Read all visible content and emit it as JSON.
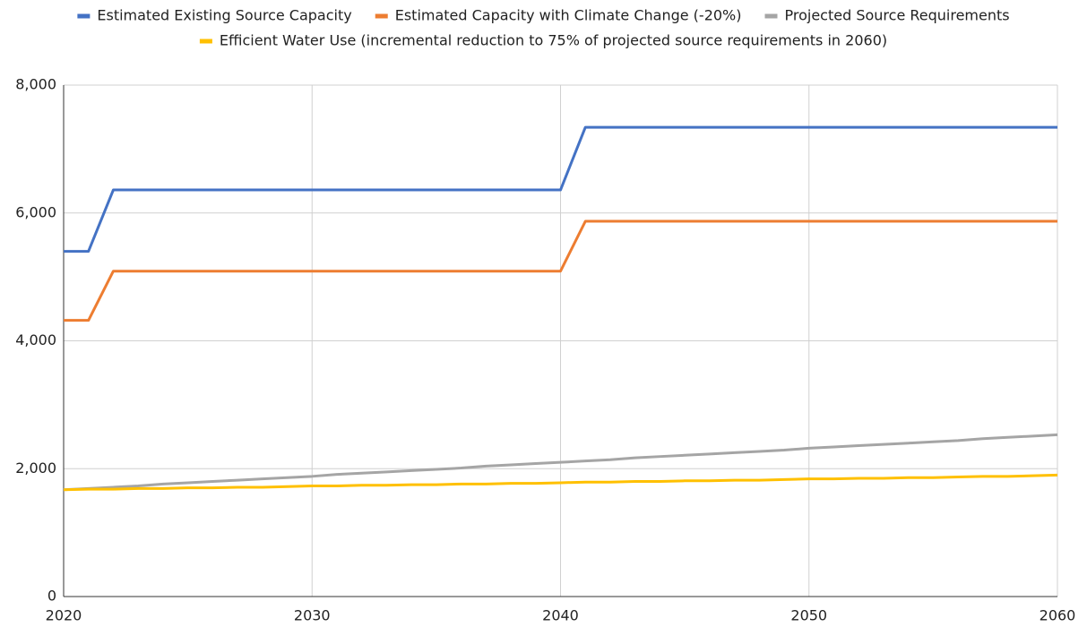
{
  "chart_data": {
    "type": "line",
    "x": [
      2020,
      2021,
      2022,
      2023,
      2024,
      2025,
      2026,
      2027,
      2028,
      2029,
      2030,
      2031,
      2032,
      2033,
      2034,
      2035,
      2036,
      2037,
      2038,
      2039,
      2040,
      2041,
      2042,
      2043,
      2044,
      2045,
      2046,
      2047,
      2048,
      2049,
      2050,
      2051,
      2052,
      2053,
      2054,
      2055,
      2056,
      2057,
      2058,
      2059,
      2060
    ],
    "series": [
      {
        "name": "Estimated Existing Source Capacity",
        "color": "#4472c4",
        "values": [
          5400,
          5400,
          6360,
          6360,
          6360,
          6360,
          6360,
          6360,
          6360,
          6360,
          6360,
          6360,
          6360,
          6360,
          6360,
          6360,
          6360,
          6360,
          6360,
          6360,
          6360,
          7340,
          7340,
          7340,
          7340,
          7340,
          7340,
          7340,
          7340,
          7340,
          7340,
          7340,
          7340,
          7340,
          7340,
          7340,
          7340,
          7340,
          7340,
          7340,
          7340
        ]
      },
      {
        "name": "Estimated Capacity with Climate Change (-20%)",
        "color": "#ed7d31",
        "values": [
          4320,
          4320,
          5090,
          5090,
          5090,
          5090,
          5090,
          5090,
          5090,
          5090,
          5090,
          5090,
          5090,
          5090,
          5090,
          5090,
          5090,
          5090,
          5090,
          5090,
          5090,
          5870,
          5870,
          5870,
          5870,
          5870,
          5870,
          5870,
          5870,
          5870,
          5870,
          5870,
          5870,
          5870,
          5870,
          5870,
          5870,
          5870,
          5870,
          5870,
          5870
        ]
      },
      {
        "name": "Projected Source Requirements",
        "color": "#a5a5a5",
        "values": [
          1670,
          1690,
          1710,
          1730,
          1760,
          1780,
          1800,
          1820,
          1840,
          1860,
          1880,
          1910,
          1930,
          1950,
          1970,
          1990,
          2010,
          2040,
          2060,
          2080,
          2100,
          2120,
          2140,
          2170,
          2190,
          2210,
          2230,
          2250,
          2270,
          2290,
          2320,
          2340,
          2360,
          2380,
          2400,
          2420,
          2440,
          2470,
          2490,
          2510,
          2530
        ]
      },
      {
        "name": "Efficient Water Use (incremental reduction to 75% of projected source requirements in 2060)",
        "color": "#ffc000",
        "values": [
          1670,
          1680,
          1680,
          1690,
          1690,
          1700,
          1700,
          1710,
          1710,
          1720,
          1730,
          1730,
          1740,
          1740,
          1750,
          1750,
          1760,
          1760,
          1770,
          1770,
          1780,
          1790,
          1790,
          1800,
          1800,
          1810,
          1810,
          1820,
          1820,
          1830,
          1840,
          1840,
          1850,
          1850,
          1860,
          1860,
          1870,
          1880,
          1880,
          1890,
          1900
        ]
      }
    ],
    "xlim": [
      2020,
      2060
    ],
    "xticks": [
      2020,
      2030,
      2040,
      2050,
      2060
    ],
    "ylim": [
      0,
      8000
    ],
    "yticks": [
      0,
      {
        "value": 2000,
        "label": "2,000"
      },
      {
        "value": 4000,
        "label": "4,000"
      },
      {
        "value": 6000,
        "label": "6,000"
      },
      {
        "value": 8000,
        "label": "8,000"
      }
    ],
    "grid": true,
    "legend": "top"
  }
}
